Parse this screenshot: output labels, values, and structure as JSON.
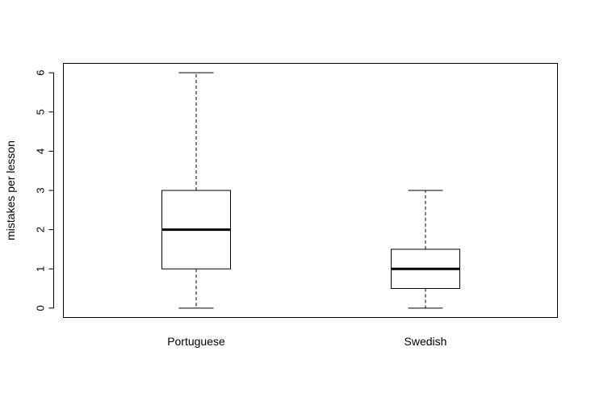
{
  "chart_data": {
    "type": "boxplot",
    "title": "",
    "xlabel": "",
    "ylabel": "mistakes per lesson",
    "ylim": [
      -0.24,
      6.24
    ],
    "yticks": [
      0,
      1,
      2,
      3,
      4,
      5,
      6
    ],
    "grid": false,
    "categories": [
      "Portuguese",
      "Swedish"
    ],
    "boxes": [
      {
        "category": "Portuguese",
        "min": 0,
        "q1": 1,
        "median": 2,
        "q3": 3,
        "max": 6
      },
      {
        "category": "Swedish",
        "min": 0,
        "q1": 0.5,
        "median": 1,
        "q3": 1.5,
        "max": 3
      }
    ]
  }
}
